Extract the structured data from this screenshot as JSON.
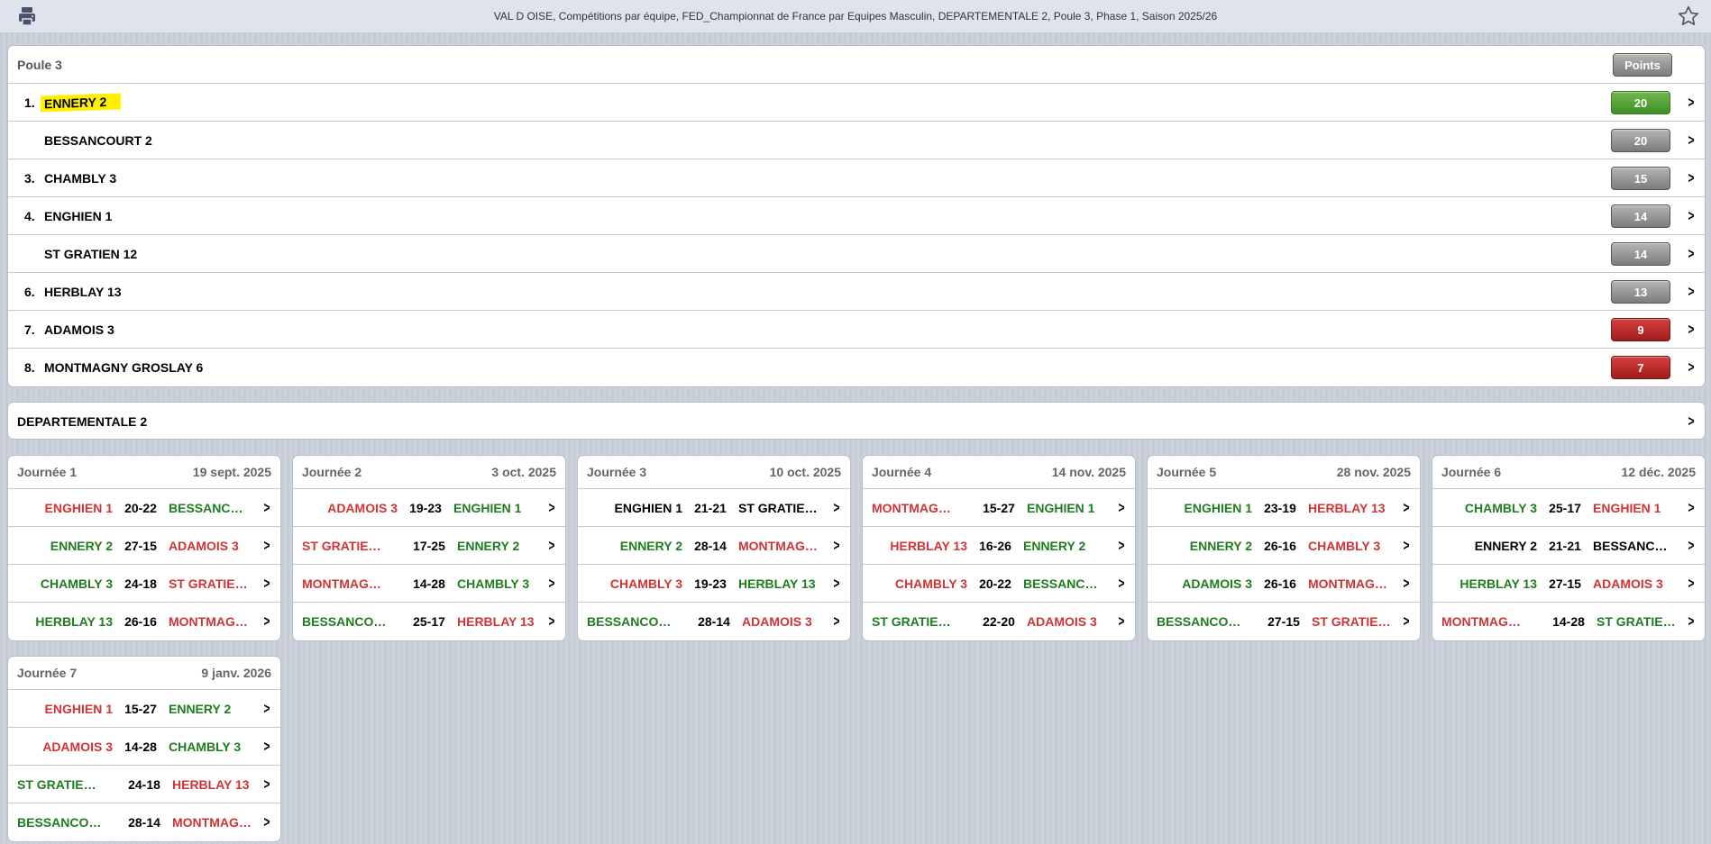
{
  "header": {
    "title": "VAL D OISE, Compétitions par équipe, FED_Championnat de France par Equipes Masculin, DEPARTEMENTALE 2, Poule 3, Phase 1, Saison 2025/26",
    "left_icon": "print-icon",
    "right_icon": "star-icon"
  },
  "standings": {
    "title": "Poule 3",
    "points_label": "Points",
    "rows": [
      {
        "rank": "1.",
        "team": "ENNERY 2",
        "points": "20",
        "color": "green",
        "highlight": true
      },
      {
        "rank": "",
        "team": "BESSANCOURT 2",
        "points": "20",
        "color": "gray"
      },
      {
        "rank": "3.",
        "team": "CHAMBLY 3",
        "points": "15",
        "color": "gray"
      },
      {
        "rank": "4.",
        "team": "ENGHIEN 1",
        "points": "14",
        "color": "gray"
      },
      {
        "rank": "",
        "team": "ST GRATIEN 12",
        "points": "14",
        "color": "gray"
      },
      {
        "rank": "6.",
        "team": "HERBLAY 13",
        "points": "13",
        "color": "gray"
      },
      {
        "rank": "7.",
        "team": "ADAMOIS 3",
        "points": "9",
        "color": "red"
      },
      {
        "rank": "8.",
        "team": "MONTMAGNY GROSLAY 6",
        "points": "7",
        "color": "red"
      }
    ]
  },
  "division": {
    "label": "DEPARTEMENTALE 2"
  },
  "colors": {
    "win": "#1e7d1e",
    "loss": "#d03434",
    "draw": "#000000"
  },
  "journees": [
    {
      "label": "Journée 1",
      "date": "19 sept. 2025",
      "matches": [
        {
          "home": "ENGHIEN 1",
          "score": "20-22",
          "away": "BESSANC…",
          "h": "L",
          "a": "W"
        },
        {
          "home": "ENNERY 2",
          "score": "27-15",
          "away": "ADAMOIS 3",
          "h": "W",
          "a": "L"
        },
        {
          "home": "CHAMBLY 3",
          "score": "24-18",
          "away": "ST GRATIE…",
          "h": "W",
          "a": "L"
        },
        {
          "home": "HERBLAY 13",
          "score": "26-16",
          "away": "MONTMAG…",
          "h": "W",
          "a": "L"
        }
      ]
    },
    {
      "label": "Journée 2",
      "date": "3 oct. 2025",
      "matches": [
        {
          "home": "ADAMOIS 3",
          "score": "19-23",
          "away": "ENGHIEN 1",
          "h": "L",
          "a": "W"
        },
        {
          "home": "ST GRATIE…",
          "score": "17-25",
          "away": "ENNERY 2",
          "h": "L",
          "a": "W",
          "left": true
        },
        {
          "home": "MONTMAG…",
          "score": "14-28",
          "away": "CHAMBLY 3",
          "h": "L",
          "a": "W",
          "left": true
        },
        {
          "home": "BESSANCO…",
          "score": "25-17",
          "away": "HERBLAY 13",
          "h": "W",
          "a": "L",
          "left": true
        }
      ]
    },
    {
      "label": "Journée 3",
      "date": "10 oct. 2025",
      "matches": [
        {
          "home": "ENGHIEN 1",
          "score": "21-21",
          "away": "ST GRATIE…",
          "h": "D",
          "a": "D"
        },
        {
          "home": "ENNERY 2",
          "score": "28-14",
          "away": "MONTMAG…",
          "h": "W",
          "a": "L"
        },
        {
          "home": "CHAMBLY 3",
          "score": "19-23",
          "away": "HERBLAY 13",
          "h": "L",
          "a": "W"
        },
        {
          "home": "BESSANCO…",
          "score": "28-14",
          "away": "ADAMOIS 3",
          "h": "W",
          "a": "L",
          "left": true
        }
      ]
    },
    {
      "label": "Journée 4",
      "date": "14 nov. 2025",
      "matches": [
        {
          "home": "MONTMAG…",
          "score": "15-27",
          "away": "ENGHIEN 1",
          "h": "L",
          "a": "W",
          "left": true
        },
        {
          "home": "HERBLAY 13",
          "score": "16-26",
          "away": "ENNERY 2",
          "h": "L",
          "a": "W"
        },
        {
          "home": "CHAMBLY 3",
          "score": "20-22",
          "away": "BESSANC…",
          "h": "L",
          "a": "W"
        },
        {
          "home": "ST GRATIE…",
          "score": "22-20",
          "away": "ADAMOIS 3",
          "h": "W",
          "a": "L",
          "left": true
        }
      ]
    },
    {
      "label": "Journée 5",
      "date": "28 nov. 2025",
      "matches": [
        {
          "home": "ENGHIEN 1",
          "score": "23-19",
          "away": "HERBLAY 13",
          "h": "W",
          "a": "L"
        },
        {
          "home": "ENNERY 2",
          "score": "26-16",
          "away": "CHAMBLY 3",
          "h": "W",
          "a": "L"
        },
        {
          "home": "ADAMOIS 3",
          "score": "26-16",
          "away": "MONTMAG…",
          "h": "W",
          "a": "L"
        },
        {
          "home": "BESSANCO…",
          "score": "27-15",
          "away": "ST GRATIE…",
          "h": "W",
          "a": "L",
          "left": true
        }
      ]
    },
    {
      "label": "Journée 6",
      "date": "12 déc. 2025",
      "matches": [
        {
          "home": "CHAMBLY 3",
          "score": "25-17",
          "away": "ENGHIEN 1",
          "h": "W",
          "a": "L"
        },
        {
          "home": "ENNERY 2",
          "score": "21-21",
          "away": "BESSANC…",
          "h": "D",
          "a": "D"
        },
        {
          "home": "HERBLAY 13",
          "score": "27-15",
          "away": "ADAMOIS 3",
          "h": "W",
          "a": "L"
        },
        {
          "home": "MONTMAG…",
          "score": "14-28",
          "away": "ST GRATIE…",
          "h": "L",
          "a": "W",
          "left": true
        }
      ]
    },
    {
      "label": "Journée 7",
      "date": "9 janv. 2026",
      "matches": [
        {
          "home": "ENGHIEN 1",
          "score": "15-27",
          "away": "ENNERY 2",
          "h": "L",
          "a": "W"
        },
        {
          "home": "ADAMOIS 3",
          "score": "14-28",
          "away": "CHAMBLY 3",
          "h": "L",
          "a": "W"
        },
        {
          "home": "ST GRATIE…",
          "score": "24-18",
          "away": "HERBLAY 13",
          "h": "W",
          "a": "L",
          "left": true
        },
        {
          "home": "BESSANCO…",
          "score": "28-14",
          "away": "MONTMAG…",
          "h": "W",
          "a": "L",
          "left": true
        }
      ]
    }
  ]
}
